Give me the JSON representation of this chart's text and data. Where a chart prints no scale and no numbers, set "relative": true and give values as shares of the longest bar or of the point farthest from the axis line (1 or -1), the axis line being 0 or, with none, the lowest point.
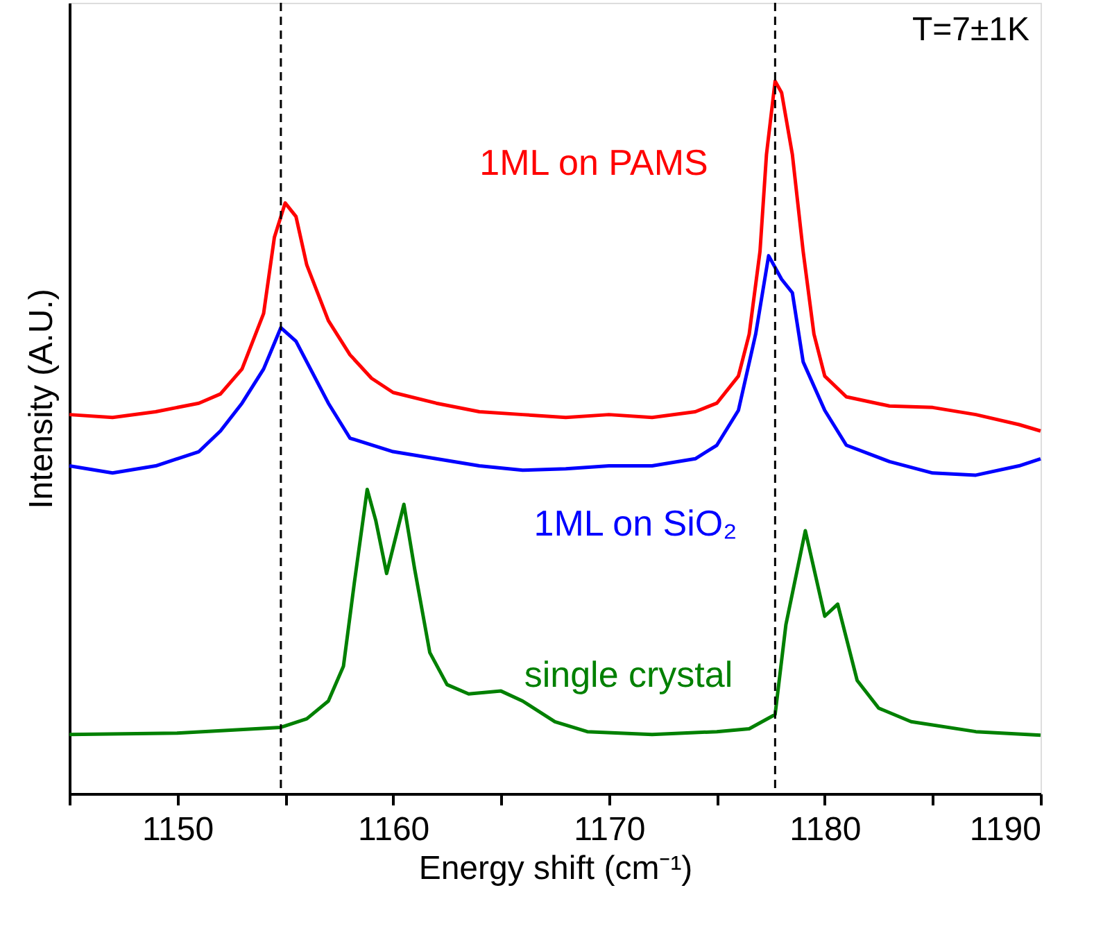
{
  "chart_data": {
    "type": "line",
    "relative": true,
    "xlabel": "Energy shift (cm⁻¹)",
    "ylabel": "Intensity (A.U.)",
    "xlim": [
      1145,
      1190
    ],
    "xticks": [
      {
        "value": 1145,
        "label": null
      },
      1150,
      {
        "value": 1155,
        "label": null
      },
      1160,
      {
        "value": 1165,
        "label": null
      },
      1170,
      {
        "value": 1175,
        "label": null
      },
      1180,
      {
        "value": 1185,
        "label": null
      },
      1190
    ],
    "tick_labels": "x",
    "grid": false,
    "legend": false,
    "marker": "none",
    "line_style": "solid",
    "annotations": [
      "T=7±1K"
    ],
    "ref_lines": [
      {
        "axis": "x",
        "value": 1154.8,
        "color": "#000000",
        "line_style": "dashed"
      },
      {
        "axis": "x",
        "value": 1177.7,
        "color": "#000000",
        "line_style": "dashed"
      }
    ],
    "series": [
      {
        "name": "1ML on PAMS",
        "color": "#ff0000",
        "x": [
          1145,
          1147,
          1149,
          1151,
          1152,
          1153,
          1154,
          1154.5,
          1155,
          1155.5,
          1156,
          1157,
          1158,
          1159,
          1160,
          1162,
          1164,
          1166,
          1168,
          1170,
          1172,
          1174,
          1175,
          1176,
          1176.5,
          1177,
          1177.3,
          1177.7,
          1178,
          1178.5,
          1179,
          1179.5,
          1180,
          1181,
          1183,
          1185,
          1187,
          1189,
          1190
        ],
        "values": [
          0.532,
          0.528,
          0.536,
          0.548,
          0.561,
          0.596,
          0.674,
          0.781,
          0.829,
          0.81,
          0.742,
          0.664,
          0.616,
          0.583,
          0.563,
          0.548,
          0.536,
          0.532,
          0.528,
          0.532,
          0.528,
          0.536,
          0.548,
          0.586,
          0.645,
          0.761,
          0.897,
          1.0,
          0.984,
          0.897,
          0.761,
          0.645,
          0.586,
          0.557,
          0.544,
          0.542,
          0.532,
          0.518,
          0.509
        ]
      },
      {
        "name": "1ML on SiO₂",
        "color": "#0000ff",
        "x": [
          1145,
          1147,
          1149,
          1151,
          1152,
          1153,
          1154,
          1154.8,
          1155.5,
          1156,
          1157,
          1158,
          1160,
          1162,
          1164,
          1166,
          1168,
          1170,
          1172,
          1174,
          1175,
          1176,
          1176.8,
          1177.4,
          1178,
          1178.5,
          1179,
          1180,
          1181,
          1183,
          1185,
          1187,
          1189,
          1190
        ],
        "values": [
          0.46,
          0.45,
          0.46,
          0.48,
          0.509,
          0.548,
          0.596,
          0.654,
          0.635,
          0.606,
          0.548,
          0.499,
          0.48,
          0.47,
          0.46,
          0.454,
          0.456,
          0.46,
          0.46,
          0.47,
          0.489,
          0.538,
          0.645,
          0.755,
          0.722,
          0.703,
          0.606,
          0.538,
          0.489,
          0.466,
          0.45,
          0.447,
          0.46,
          0.47
        ]
      },
      {
        "name": "single crystal",
        "color": "#008000",
        "x": [
          1145,
          1150,
          1154.8,
          1156,
          1157,
          1157.7,
          1158.2,
          1158.8,
          1159.2,
          1159.7,
          1160.5,
          1161,
          1161.7,
          1162.5,
          1163.5,
          1165,
          1166,
          1167.5,
          1169,
          1172,
          1175,
          1176.5,
          1177.7,
          1178.2,
          1179.1,
          1180,
          1180.6,
          1181.5,
          1182.5,
          1184,
          1187,
          1190
        ],
        "values": [
          0.083,
          0.085,
          0.093,
          0.105,
          0.13,
          0.179,
          0.295,
          0.427,
          0.383,
          0.309,
          0.406,
          0.315,
          0.198,
          0.153,
          0.14,
          0.144,
          0.13,
          0.101,
          0.087,
          0.083,
          0.087,
          0.091,
          0.111,
          0.237,
          0.369,
          0.249,
          0.266,
          0.159,
          0.12,
          0.101,
          0.087,
          0.082
        ]
      }
    ]
  }
}
